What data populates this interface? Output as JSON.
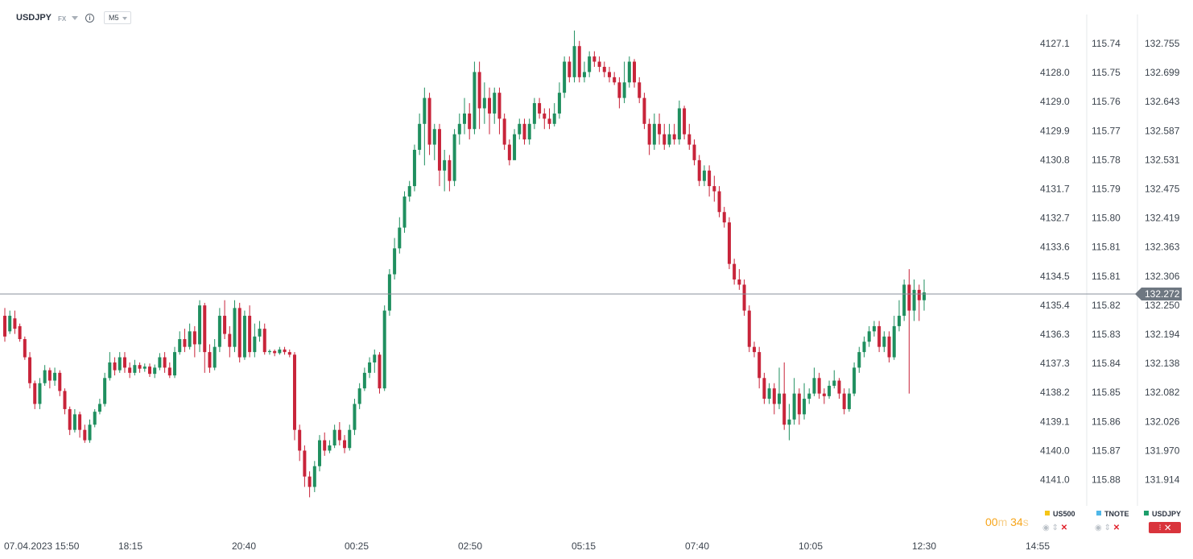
{
  "header": {
    "symbol": "USDJPY",
    "market": "FX",
    "timeframe": "M5"
  },
  "countdown": {
    "min": "00",
    "min_unit": "m",
    "sec": "34",
    "sec_unit": "s"
  },
  "legend": [
    {
      "name": "US500",
      "color": "#f5c518"
    },
    {
      "name": "TNOTE",
      "color": "#4fb7e8"
    },
    {
      "name": "USDJPY",
      "color": "#1d9e6b"
    }
  ],
  "colors": {
    "up": "#1f8f5f",
    "down": "#c8243a",
    "grid": "#e6e8eb",
    "text": "#3c444e",
    "tag": "#6e7781"
  },
  "chart_data": {
    "type": "candlestick",
    "x_labels": [
      "07.04.2023  15:50",
      "18:15",
      "20:40",
      "00:25",
      "02:50",
      "05:15",
      "07:40",
      "10:05",
      "12:30",
      "14:55"
    ],
    "axes": [
      {
        "name": "US500",
        "labels": [
          "4127.1",
          "4128.0",
          "4129.0",
          "4129.9",
          "4130.8",
          "4131.7",
          "4132.7",
          "4133.6",
          "4134.5",
          "4135.4",
          "4136.3",
          "4137.3",
          "4138.2",
          "4139.1",
          "4140.0",
          "4141.0"
        ]
      },
      {
        "name": "TNOTE",
        "labels": [
          "115.74",
          "115.75",
          "115.76",
          "115.77",
          "115.78",
          "115.79",
          "115.80",
          "115.81",
          "115.81",
          "115.82",
          "115.83",
          "115.84",
          "115.85",
          "115.86",
          "115.87",
          "115.88"
        ]
      },
      {
        "name": "USDJPY",
        "labels": [
          "132.755",
          "132.699",
          "132.643",
          "132.587",
          "132.531",
          "132.475",
          "132.419",
          "132.363",
          "132.306",
          "132.250",
          "132.194",
          "132.138",
          "132.082",
          "132.026",
          "131.970",
          "131.914"
        ]
      }
    ],
    "y_range": [
      131.88,
      132.79
    ],
    "current_price": 132.272,
    "current_price_label": "132.272",
    "candles": [
      [
        132.23,
        132.19,
        132.245,
        132.18
      ],
      [
        132.2,
        132.23,
        132.24,
        132.195
      ],
      [
        132.225,
        132.205,
        132.24,
        132.195
      ],
      [
        132.21,
        132.185,
        132.215,
        132.18
      ],
      [
        132.185,
        132.15,
        132.19,
        132.145
      ],
      [
        132.15,
        132.1,
        132.16,
        132.09
      ],
      [
        132.1,
        132.06,
        132.105,
        132.05
      ],
      [
        132.06,
        132.1,
        132.11,
        132.05
      ],
      [
        132.1,
        132.125,
        132.135,
        132.095
      ],
      [
        132.125,
        132.105,
        132.13,
        132.09
      ],
      [
        132.105,
        132.12,
        132.13,
        132.095
      ],
      [
        132.12,
        132.085,
        132.125,
        132.075
      ],
      [
        132.085,
        132.05,
        132.09,
        132.04
      ],
      [
        132.05,
        132.01,
        132.055,
        132.0
      ],
      [
        132.01,
        132.04,
        132.05,
        132.005
      ],
      [
        132.04,
        132.01,
        132.045,
        131.995
      ],
      [
        132.01,
        131.99,
        132.02,
        131.985
      ],
      [
        131.99,
        132.02,
        132.03,
        131.985
      ],
      [
        132.02,
        132.045,
        132.05,
        132.015
      ],
      [
        132.045,
        132.06,
        132.07,
        132.04
      ],
      [
        132.06,
        132.11,
        132.12,
        132.055
      ],
      [
        132.11,
        132.14,
        132.16,
        132.105
      ],
      [
        132.14,
        132.125,
        132.15,
        132.115
      ],
      [
        132.125,
        132.15,
        132.16,
        132.12
      ],
      [
        132.15,
        132.13,
        132.16,
        132.12
      ],
      [
        132.13,
        132.12,
        132.14,
        132.11
      ],
      [
        132.12,
        132.135,
        132.145,
        132.115
      ],
      [
        132.135,
        132.128,
        132.14,
        132.12
      ],
      [
        132.128,
        132.132,
        132.138,
        132.122
      ],
      [
        132.132,
        132.118,
        132.138,
        132.112
      ],
      [
        132.118,
        132.13,
        132.136,
        132.11
      ],
      [
        132.13,
        132.15,
        132.158,
        132.125
      ],
      [
        132.15,
        132.13,
        132.16,
        132.12
      ],
      [
        132.13,
        132.115,
        132.14,
        132.11
      ],
      [
        132.115,
        132.16,
        132.17,
        132.11
      ],
      [
        132.16,
        132.185,
        132.2,
        132.155
      ],
      [
        132.185,
        132.17,
        132.205,
        132.16
      ],
      [
        132.17,
        132.2,
        132.215,
        132.165
      ],
      [
        132.2,
        132.175,
        132.21,
        132.15
      ],
      [
        132.175,
        132.25,
        132.26,
        132.16
      ],
      [
        132.25,
        132.16,
        132.255,
        132.12
      ],
      [
        132.16,
        132.13,
        132.175,
        132.12
      ],
      [
        132.13,
        132.17,
        132.185,
        132.125
      ],
      [
        132.17,
        132.23,
        132.245,
        132.16
      ],
      [
        132.23,
        132.195,
        132.26,
        132.185
      ],
      [
        132.195,
        132.17,
        132.21,
        132.15
      ],
      [
        132.17,
        132.245,
        132.26,
        132.16
      ],
      [
        132.245,
        132.15,
        132.255,
        132.14
      ],
      [
        132.15,
        132.23,
        132.24,
        132.145
      ],
      [
        132.23,
        132.16,
        132.25,
        132.15
      ],
      [
        132.16,
        132.19,
        132.215,
        132.15
      ],
      [
        132.19,
        132.205,
        132.22,
        132.18
      ],
      [
        132.205,
        132.16,
        132.215,
        132.155
      ],
      [
        132.16,
        132.162,
        132.165,
        132.155
      ],
      [
        132.162,
        132.158,
        132.165,
        132.152
      ],
      [
        132.158,
        132.165,
        132.17,
        132.155
      ],
      [
        132.165,
        132.16,
        132.17,
        132.155
      ],
      [
        132.16,
        132.155,
        132.165,
        132.15
      ],
      [
        132.155,
        132.01,
        132.16,
        131.99
      ],
      [
        132.01,
        131.97,
        132.02,
        131.95
      ],
      [
        131.97,
        131.92,
        131.98,
        131.9
      ],
      [
        131.92,
        131.9,
        131.93,
        131.88
      ],
      [
        131.9,
        131.94,
        131.95,
        131.89
      ],
      [
        131.94,
        131.99,
        132.0,
        131.93
      ],
      [
        131.99,
        131.97,
        132.005,
        131.96
      ],
      [
        131.97,
        131.98,
        131.99,
        131.965
      ],
      [
        131.98,
        132.01,
        132.02,
        131.975
      ],
      [
        132.01,
        131.99,
        132.025,
        131.98
      ],
      [
        131.99,
        131.975,
        132.0,
        131.965
      ],
      [
        131.975,
        132.01,
        132.02,
        131.97
      ],
      [
        132.01,
        132.06,
        132.07,
        132.0
      ],
      [
        132.06,
        132.09,
        132.1,
        132.05
      ],
      [
        132.09,
        132.12,
        132.13,
        132.085
      ],
      [
        132.12,
        132.14,
        132.15,
        132.11
      ],
      [
        132.14,
        132.155,
        132.165,
        132.12
      ],
      [
        132.155,
        132.09,
        132.16,
        132.08
      ],
      [
        132.09,
        132.24,
        132.25,
        132.085
      ],
      [
        132.24,
        132.31,
        132.32,
        132.23
      ],
      [
        132.31,
        132.36,
        132.38,
        132.3
      ],
      [
        132.36,
        132.4,
        132.42,
        132.35
      ],
      [
        132.4,
        132.46,
        132.47,
        132.39
      ],
      [
        132.46,
        132.48,
        132.49,
        132.45
      ],
      [
        132.48,
        132.55,
        132.56,
        132.47
      ],
      [
        132.55,
        132.6,
        132.62,
        132.54
      ],
      [
        132.6,
        132.65,
        132.67,
        132.52
      ],
      [
        132.65,
        132.56,
        132.66,
        132.54
      ],
      [
        132.56,
        132.59,
        132.6,
        132.53
      ],
      [
        132.59,
        132.51,
        132.6,
        132.48
      ],
      [
        132.51,
        132.53,
        132.55,
        132.47
      ],
      [
        132.53,
        132.49,
        132.54,
        132.47
      ],
      [
        132.49,
        132.58,
        132.59,
        132.48
      ],
      [
        132.58,
        132.6,
        132.62,
        132.56
      ],
      [
        132.6,
        132.62,
        132.65,
        132.58
      ],
      [
        132.62,
        132.59,
        132.64,
        132.57
      ],
      [
        132.59,
        132.7,
        132.72,
        132.58
      ],
      [
        132.7,
        132.63,
        132.72,
        132.59
      ],
      [
        132.63,
        132.65,
        132.68,
        132.6
      ],
      [
        132.65,
        132.62,
        132.67,
        132.58
      ],
      [
        132.62,
        132.66,
        132.67,
        132.6
      ],
      [
        132.66,
        132.61,
        132.67,
        132.58
      ],
      [
        132.61,
        132.56,
        132.62,
        132.55
      ],
      [
        132.56,
        132.53,
        132.57,
        132.52
      ],
      [
        132.53,
        132.58,
        132.59,
        132.54
      ],
      [
        132.58,
        132.6,
        132.61,
        132.57
      ],
      [
        132.6,
        132.57,
        132.61,
        132.56
      ],
      [
        132.57,
        132.6,
        132.61,
        132.56
      ],
      [
        132.6,
        132.64,
        132.65,
        132.59
      ],
      [
        132.64,
        132.62,
        132.65,
        132.61
      ],
      [
        132.62,
        132.61,
        132.63,
        132.59
      ],
      [
        132.61,
        132.6,
        132.63,
        132.59
      ],
      [
        132.6,
        132.62,
        132.64,
        132.595
      ],
      [
        132.62,
        132.66,
        132.68,
        132.61
      ],
      [
        132.66,
        132.72,
        132.73,
        132.65
      ],
      [
        132.72,
        132.69,
        132.73,
        132.68
      ],
      [
        132.69,
        132.75,
        132.78,
        132.68
      ],
      [
        132.75,
        132.69,
        132.76,
        132.68
      ],
      [
        132.69,
        132.7,
        132.72,
        132.68
      ],
      [
        132.7,
        132.73,
        132.74,
        132.69
      ],
      [
        132.73,
        132.72,
        132.74,
        132.71
      ],
      [
        132.72,
        132.71,
        132.73,
        132.7
      ],
      [
        132.71,
        132.7,
        132.72,
        132.69
      ],
      [
        132.7,
        132.69,
        132.71,
        132.68
      ],
      [
        132.69,
        132.68,
        132.7,
        132.675
      ],
      [
        132.68,
        132.65,
        132.69,
        132.63
      ],
      [
        132.65,
        132.68,
        132.72,
        132.64
      ],
      [
        132.68,
        132.72,
        132.73,
        132.67
      ],
      [
        132.72,
        132.68,
        132.725,
        132.67
      ],
      [
        132.68,
        132.65,
        132.69,
        132.64
      ],
      [
        132.65,
        132.6,
        132.66,
        132.59
      ],
      [
        132.6,
        132.56,
        132.61,
        132.54
      ],
      [
        132.56,
        132.6,
        132.62,
        132.55
      ],
      [
        132.6,
        132.58,
        132.62,
        132.56
      ],
      [
        132.58,
        132.56,
        132.6,
        132.55
      ],
      [
        132.56,
        132.58,
        132.6,
        132.555
      ],
      [
        132.58,
        132.57,
        132.6,
        132.56
      ],
      [
        132.57,
        132.63,
        132.645,
        132.56
      ],
      [
        132.63,
        132.58,
        132.635,
        132.57
      ],
      [
        132.58,
        132.56,
        132.6,
        132.55
      ],
      [
        132.56,
        132.53,
        132.57,
        132.52
      ],
      [
        132.53,
        132.49,
        132.54,
        132.48
      ],
      [
        132.49,
        132.51,
        132.52,
        132.48
      ],
      [
        132.51,
        132.48,
        132.52,
        132.46
      ],
      [
        132.48,
        132.47,
        132.5,
        132.45
      ],
      [
        132.47,
        132.43,
        132.48,
        132.42
      ],
      [
        132.43,
        132.41,
        132.44,
        132.4
      ],
      [
        132.41,
        132.33,
        132.42,
        132.32
      ],
      [
        132.33,
        132.3,
        132.34,
        132.29
      ],
      [
        132.3,
        132.29,
        132.32,
        132.28
      ],
      [
        132.29,
        132.24,
        132.3,
        132.23
      ],
      [
        132.24,
        132.17,
        132.25,
        132.16
      ],
      [
        132.17,
        132.16,
        132.18,
        132.15
      ],
      [
        132.16,
        132.11,
        132.17,
        132.09
      ],
      [
        132.11,
        132.07,
        132.12,
        132.06
      ],
      [
        132.07,
        132.09,
        132.1,
        132.06
      ],
      [
        132.09,
        132.06,
        132.1,
        132.04
      ],
      [
        132.06,
        132.08,
        132.13,
        132.05
      ],
      [
        132.08,
        132.02,
        132.14,
        132.01
      ],
      [
        132.02,
        132.03,
        132.06,
        131.99
      ],
      [
        132.03,
        132.08,
        132.11,
        132.02
      ],
      [
        132.08,
        132.04,
        132.09,
        132.02
      ],
      [
        132.04,
        132.07,
        132.1,
        132.03
      ],
      [
        132.07,
        132.08,
        132.09,
        132.06
      ],
      [
        132.08,
        132.11,
        132.13,
        132.075
      ],
      [
        132.11,
        132.08,
        132.12,
        132.07
      ],
      [
        132.08,
        132.075,
        132.09,
        132.06
      ],
      [
        132.075,
        132.095,
        132.105,
        132.07
      ],
      [
        132.095,
        132.105,
        132.125,
        132.09
      ],
      [
        132.105,
        132.08,
        132.11,
        132.07
      ],
      [
        132.08,
        132.05,
        132.09,
        132.04
      ],
      [
        132.05,
        132.08,
        132.09,
        132.045
      ],
      [
        132.08,
        132.13,
        132.14,
        132.075
      ],
      [
        132.13,
        132.16,
        132.17,
        132.12
      ],
      [
        132.16,
        132.18,
        132.19,
        132.15
      ],
      [
        132.18,
        132.2,
        132.21,
        132.17
      ],
      [
        132.2,
        132.21,
        132.22,
        132.19
      ],
      [
        132.21,
        132.17,
        132.22,
        132.16
      ],
      [
        132.17,
        132.19,
        132.2,
        132.16
      ],
      [
        132.19,
        132.15,
        132.2,
        132.14
      ],
      [
        132.15,
        132.21,
        132.23,
        132.145
      ],
      [
        132.21,
        132.23,
        132.26,
        132.2
      ],
      [
        132.23,
        132.29,
        132.3,
        132.22
      ],
      [
        132.29,
        132.24,
        132.32,
        132.08
      ],
      [
        132.24,
        132.28,
        132.3,
        132.22
      ],
      [
        132.28,
        132.26,
        132.29,
        132.22
      ],
      [
        132.26,
        132.275,
        132.3,
        132.24
      ]
    ]
  }
}
